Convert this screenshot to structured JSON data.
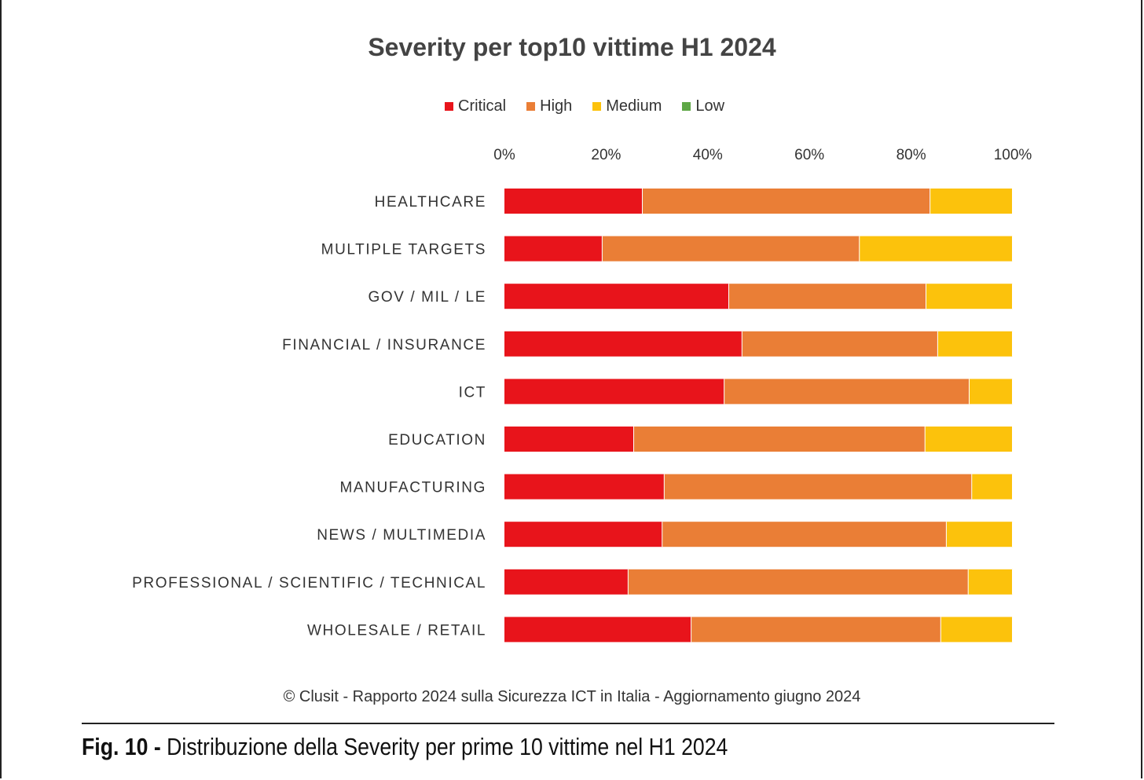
{
  "chart_data": {
    "type": "bar",
    "orientation": "horizontal",
    "stacked": true,
    "title": "Severity per top10 vittime H1 2024",
    "xlim": [
      0,
      100
    ],
    "x_ticks": [
      "0%",
      "20%",
      "40%",
      "60%",
      "80%",
      "100%"
    ],
    "legend_position": "top",
    "categories": [
      "HEALTHCARE",
      "MULTIPLE TARGETS",
      "GOV / MIL / LE",
      "FINANCIAL / INSURANCE",
      "ICT",
      "EDUCATION",
      "MANUFACTURING",
      "NEWS / MULTIMEDIA",
      "PROFESSIONAL / SCIENTIFIC / TECHNICAL",
      "WHOLESALE / RETAIL"
    ],
    "series": [
      {
        "name": "Critical",
        "color": "#e8141b",
        "values": [
          27.2,
          19.3,
          44.2,
          46.8,
          43.3,
          25.5,
          31.5,
          31.1,
          24.4,
          36.8
        ]
      },
      {
        "name": "High",
        "color": "#ea7e36",
        "values": [
          56.6,
          50.6,
          38.8,
          38.5,
          48.2,
          57.3,
          60.5,
          55.9,
          66.9,
          49.1
        ]
      },
      {
        "name": "Medium",
        "color": "#fcc20c",
        "values": [
          16.2,
          30.1,
          17.0,
          14.7,
          8.5,
          17.2,
          8.0,
          13.0,
          8.7,
          14.1
        ]
      },
      {
        "name": "Low",
        "color": "#5ea746",
        "values": [
          0,
          0,
          0,
          0,
          0,
          0,
          0,
          0,
          0,
          0
        ]
      }
    ]
  },
  "footer": "© Clusit - Rapporto 2024 sulla Sicurezza ICT in Italia - Aggiornamento giugno 2024",
  "caption": {
    "label": "Fig. 10 -",
    "text": " Distribuzione della Severity per prime 10 vittime nel H1 2024"
  }
}
